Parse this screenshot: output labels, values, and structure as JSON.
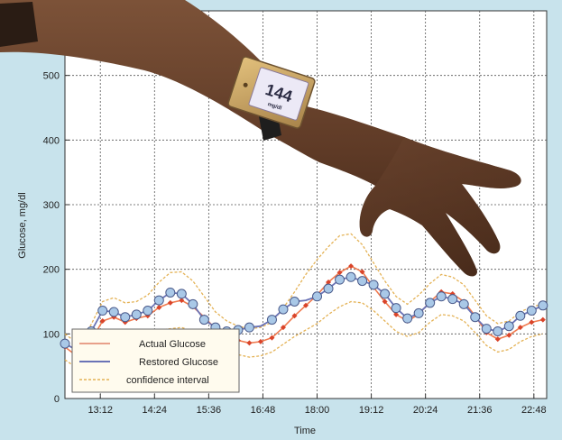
{
  "chart_data": {
    "type": "line",
    "xlabel": "Time",
    "ylabel": "Glucose, mg/dl",
    "ylim": [
      0,
      600
    ],
    "yticks": [
      0,
      100,
      200,
      300,
      400,
      500
    ],
    "xlim": [
      "12:25",
      "23:05"
    ],
    "xticks": [
      "13:12",
      "14:24",
      "15:36",
      "16:48",
      "18:00",
      "19:12",
      "20:24",
      "21:36",
      "22:48"
    ],
    "grid": true,
    "legend_position": "bottom-left",
    "colors": {
      "actual": "#f07a4e",
      "restored": "#6a73b6",
      "confidence": "#e4b255",
      "marker_fill": "#a9c8e7",
      "background": "#c8e3ec"
    },
    "series": [
      {
        "name": "Actual Glucose",
        "x": [
          "12:25",
          "12:45",
          "13:00",
          "13:15",
          "13:30",
          "13:45",
          "14:00",
          "14:15",
          "14:30",
          "14:45",
          "15:00",
          "15:15",
          "15:30",
          "15:45",
          "16:00",
          "16:15",
          "16:30",
          "16:45",
          "17:00",
          "17:15",
          "17:30",
          "17:45",
          "18:00",
          "18:15",
          "18:30",
          "18:45",
          "19:00",
          "19:15",
          "19:30",
          "19:45",
          "20:00",
          "20:15",
          "20:30",
          "20:45",
          "21:00",
          "21:15",
          "21:30",
          "21:45",
          "22:00",
          "22:15",
          "22:30",
          "22:45",
          "23:00"
        ],
        "y": [
          80,
          62,
          90,
          120,
          126,
          118,
          124,
          128,
          141,
          148,
          152,
          142,
          126,
          108,
          96,
          90,
          86,
          88,
          94,
          110,
          128,
          144,
          160,
          180,
          195,
          205,
          196,
          172,
          150,
          130,
          120,
          130,
          150,
          165,
          162,
          150,
          128,
          102,
          92,
          98,
          110,
          118,
          122
        ]
      },
      {
        "name": "Restored Glucose",
        "x": [
          "12:25",
          "12:45",
          "13:00",
          "13:15",
          "13:30",
          "13:45",
          "14:00",
          "14:15",
          "14:30",
          "14:45",
          "15:00",
          "15:15",
          "15:30",
          "15:45",
          "16:00",
          "16:15",
          "16:30",
          "16:45",
          "17:00",
          "17:15",
          "17:30",
          "17:45",
          "18:00",
          "18:15",
          "18:30",
          "18:45",
          "19:00",
          "19:15",
          "19:30",
          "19:45",
          "20:00",
          "20:15",
          "20:30",
          "20:45",
          "21:00",
          "21:15",
          "21:30",
          "21:45",
          "22:00",
          "22:15",
          "22:30",
          "22:45",
          "23:00"
        ],
        "y": [
          85,
          72,
          104,
          136,
          134,
          126,
          130,
          136,
          152,
          164,
          162,
          146,
          122,
          110,
          104,
          106,
          110,
          112,
          122,
          138,
          150,
          152,
          158,
          170,
          184,
          188,
          182,
          176,
          162,
          140,
          124,
          132,
          148,
          158,
          154,
          146,
          126,
          108,
          104,
          112,
          128,
          136,
          144
        ]
      }
    ],
    "confidence_interval": {
      "name": "confidence interval",
      "x": [
        "12:25",
        "12:45",
        "13:00",
        "13:15",
        "13:30",
        "13:45",
        "14:00",
        "14:15",
        "14:30",
        "14:45",
        "15:00",
        "15:15",
        "15:30",
        "15:45",
        "16:00",
        "16:15",
        "16:30",
        "16:45",
        "17:00",
        "17:15",
        "17:30",
        "17:45",
        "18:00",
        "18:15",
        "18:30",
        "18:45",
        "19:00",
        "19:15",
        "19:30",
        "19:45",
        "20:00",
        "20:15",
        "20:30",
        "20:45",
        "21:00",
        "21:15",
        "21:30",
        "21:45",
        "22:00",
        "22:15",
        "22:30",
        "22:45",
        "23:00"
      ],
      "upper": [
        100,
        82,
        115,
        150,
        156,
        148,
        150,
        160,
        180,
        195,
        196,
        182,
        158,
        134,
        120,
        112,
        108,
        110,
        118,
        140,
        165,
        192,
        215,
        235,
        252,
        255,
        238,
        210,
        182,
        158,
        146,
        160,
        178,
        192,
        188,
        176,
        152,
        128,
        116,
        120,
        134,
        142,
        146
      ],
      "lower": [
        60,
        44,
        66,
        92,
        98,
        90,
        96,
        98,
        106,
        108,
        110,
        104,
        94,
        84,
        74,
        68,
        64,
        66,
        72,
        84,
        96,
        106,
        116,
        130,
        142,
        150,
        148,
        136,
        120,
        104,
        96,
        102,
        118,
        130,
        128,
        120,
        102,
        82,
        72,
        76,
        88,
        96,
        100
      ]
    },
    "restored_marker_x": [
      "12:25",
      "13:00",
      "13:15",
      "13:30",
      "13:45",
      "14:00",
      "14:15",
      "14:30",
      "14:45",
      "15:00",
      "15:15",
      "15:30",
      "15:45",
      "16:00",
      "16:15",
      "16:30",
      "17:00",
      "17:15",
      "17:30",
      "18:00",
      "18:15",
      "18:30",
      "18:45",
      "19:00",
      "19:15",
      "19:30",
      "19:45",
      "20:00",
      "20:15",
      "20:30",
      "20:45",
      "21:00",
      "21:15",
      "21:30",
      "21:45",
      "22:00",
      "22:15",
      "22:30",
      "22:45",
      "23:00"
    ]
  },
  "device": {
    "display_value": "144",
    "display_unit": "mg/dl"
  }
}
